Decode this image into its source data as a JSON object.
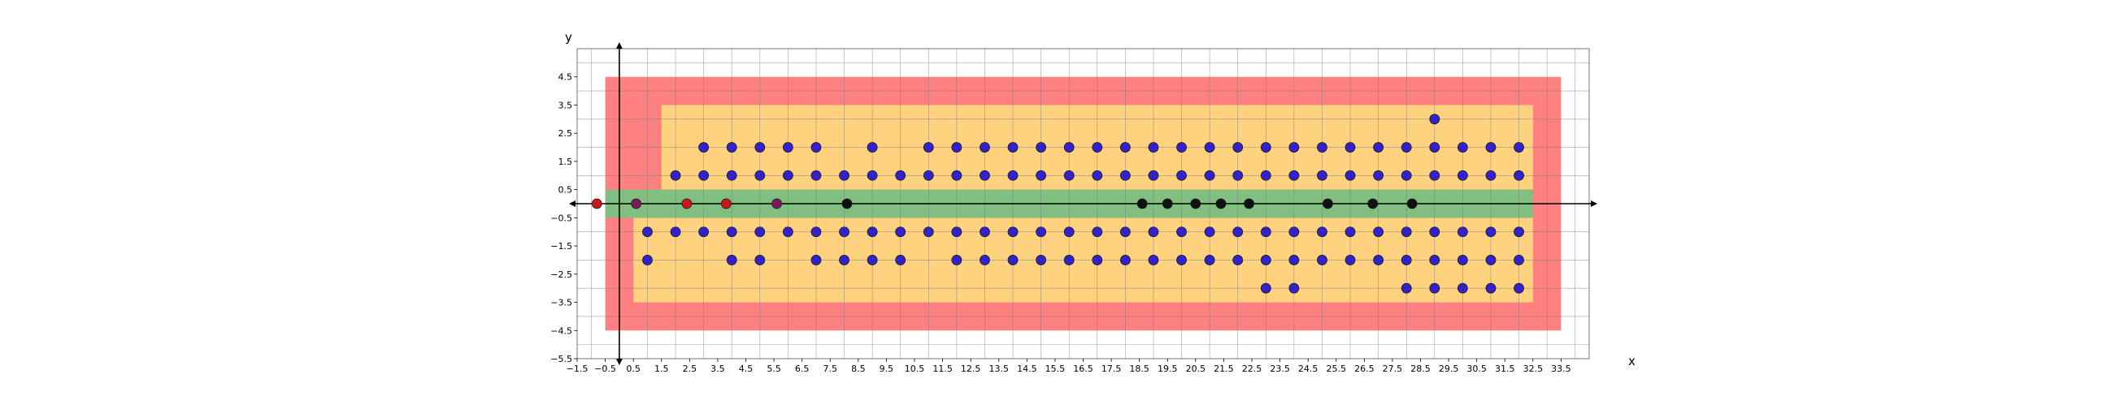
{
  "chart_data": {
    "type": "scatter",
    "xlabel": "x",
    "ylabel": "y",
    "xlim": [
      -1.5,
      34.5
    ],
    "ylim": [
      -5.5,
      5.5
    ],
    "grid": true,
    "x_ticks": [
      "−1.5",
      "−0.5",
      "0.5",
      "1.5",
      "2.5",
      "3.5",
      "4.5",
      "5.5",
      "6.5",
      "7.5",
      "8.5",
      "9.5",
      "10.5",
      "11.5",
      "12.5",
      "13.5",
      "14.5",
      "15.5",
      "16.5",
      "17.5",
      "18.5",
      "19.5",
      "20.5",
      "21.5",
      "22.5",
      "23.5",
      "24.5",
      "25.5",
      "26.5",
      "27.5",
      "28.5",
      "29.5",
      "30.5",
      "31.5",
      "32.5",
      "33.5"
    ],
    "x_tick_values": [
      -1.5,
      -0.5,
      0.5,
      1.5,
      2.5,
      3.5,
      4.5,
      5.5,
      6.5,
      7.5,
      8.5,
      9.5,
      10.5,
      11.5,
      12.5,
      13.5,
      14.5,
      15.5,
      16.5,
      17.5,
      18.5,
      19.5,
      20.5,
      21.5,
      22.5,
      23.5,
      24.5,
      25.5,
      26.5,
      27.5,
      28.5,
      29.5,
      30.5,
      31.5,
      32.5,
      33.5
    ],
    "y_ticks": [
      "4.5",
      "3.5",
      "2.5",
      "1.5",
      "0.5",
      "−0.5",
      "−1.5",
      "−2.5",
      "−3.5",
      "−4.5",
      "−5.5"
    ],
    "y_tick_values": [
      4.5,
      3.5,
      2.5,
      1.5,
      0.5,
      -0.5,
      -1.5,
      -2.5,
      -3.5,
      -4.5,
      -5.5
    ],
    "regions": [
      {
        "name": "red-zone",
        "color": "#ff8080",
        "x": [
          -0.5,
          33.5
        ],
        "y": [
          -4.5,
          4.5
        ]
      },
      {
        "name": "orange-zone-upper",
        "color": "#ffd27f",
        "x": [
          1.5,
          32.5
        ],
        "y": [
          0.5,
          3.5
        ]
      },
      {
        "name": "orange-zone-lower",
        "color": "#ffd27f",
        "x": [
          0.5,
          32.5
        ],
        "y": [
          -3.5,
          -0.5
        ]
      },
      {
        "name": "green-zone",
        "color": "#80bf80",
        "x": [
          -0.5,
          32.5
        ],
        "y": [
          -0.5,
          0.5
        ]
      }
    ],
    "series": [
      {
        "color": "#3322cc",
        "points": [
          [
            29,
            3
          ],
          [
            3,
            2
          ],
          [
            4,
            2
          ],
          [
            5,
            2
          ],
          [
            6,
            2
          ],
          [
            7,
            2
          ],
          [
            9,
            2
          ],
          [
            11,
            2
          ],
          [
            12,
            2
          ],
          [
            13,
            2
          ],
          [
            14,
            2
          ],
          [
            15,
            2
          ],
          [
            16,
            2
          ],
          [
            17,
            2
          ],
          [
            18,
            2
          ],
          [
            19,
            2
          ],
          [
            20,
            2
          ],
          [
            21,
            2
          ],
          [
            22,
            2
          ],
          [
            23,
            2
          ],
          [
            24,
            2
          ],
          [
            25,
            2
          ],
          [
            26,
            2
          ],
          [
            27,
            2
          ],
          [
            28,
            2
          ],
          [
            29,
            2
          ],
          [
            30,
            2
          ],
          [
            31,
            2
          ],
          [
            32,
            2
          ],
          [
            2,
            1
          ],
          [
            3,
            1
          ],
          [
            4,
            1
          ],
          [
            5,
            1
          ],
          [
            6,
            1
          ],
          [
            7,
            1
          ],
          [
            8,
            1
          ],
          [
            9,
            1
          ],
          [
            10,
            1
          ],
          [
            11,
            1
          ],
          [
            12,
            1
          ],
          [
            13,
            1
          ],
          [
            14,
            1
          ],
          [
            15,
            1
          ],
          [
            16,
            1
          ],
          [
            17,
            1
          ],
          [
            18,
            1
          ],
          [
            19,
            1
          ],
          [
            20,
            1
          ],
          [
            21,
            1
          ],
          [
            22,
            1
          ],
          [
            23,
            1
          ],
          [
            24,
            1
          ],
          [
            25,
            1
          ],
          [
            26,
            1
          ],
          [
            27,
            1
          ],
          [
            28,
            1
          ],
          [
            29,
            1
          ],
          [
            30,
            1
          ],
          [
            31,
            1
          ],
          [
            32,
            1
          ],
          [
            1,
            -1
          ],
          [
            2,
            -1
          ],
          [
            3,
            -1
          ],
          [
            4,
            -1
          ],
          [
            5,
            -1
          ],
          [
            6,
            -1
          ],
          [
            7,
            -1
          ],
          [
            8,
            -1
          ],
          [
            9,
            -1
          ],
          [
            10,
            -1
          ],
          [
            11,
            -1
          ],
          [
            12,
            -1
          ],
          [
            13,
            -1
          ],
          [
            14,
            -1
          ],
          [
            15,
            -1
          ],
          [
            16,
            -1
          ],
          [
            17,
            -1
          ],
          [
            18,
            -1
          ],
          [
            19,
            -1
          ],
          [
            20,
            -1
          ],
          [
            21,
            -1
          ],
          [
            22,
            -1
          ],
          [
            23,
            -1
          ],
          [
            24,
            -1
          ],
          [
            25,
            -1
          ],
          [
            26,
            -1
          ],
          [
            27,
            -1
          ],
          [
            28,
            -1
          ],
          [
            29,
            -1
          ],
          [
            30,
            -1
          ],
          [
            31,
            -1
          ],
          [
            32,
            -1
          ],
          [
            1,
            -2
          ],
          [
            4,
            -2
          ],
          [
            5,
            -2
          ],
          [
            7,
            -2
          ],
          [
            8,
            -2
          ],
          [
            9,
            -2
          ],
          [
            10,
            -2
          ],
          [
            12,
            -2
          ],
          [
            13,
            -2
          ],
          [
            14,
            -2
          ],
          [
            15,
            -2
          ],
          [
            16,
            -2
          ],
          [
            17,
            -2
          ],
          [
            18,
            -2
          ],
          [
            19,
            -2
          ],
          [
            20,
            -2
          ],
          [
            21,
            -2
          ],
          [
            22,
            -2
          ],
          [
            23,
            -2
          ],
          [
            24,
            -2
          ],
          [
            25,
            -2
          ],
          [
            26,
            -2
          ],
          [
            27,
            -2
          ],
          [
            28,
            -2
          ],
          [
            29,
            -2
          ],
          [
            30,
            -2
          ],
          [
            31,
            -2
          ],
          [
            32,
            -2
          ],
          [
            23,
            -3
          ],
          [
            24,
            -3
          ],
          [
            28,
            -3
          ],
          [
            29,
            -3
          ],
          [
            30,
            -3
          ],
          [
            31,
            -3
          ],
          [
            32,
            -3
          ]
        ]
      },
      {
        "color": "#c81818",
        "points": [
          [
            -0.8,
            0
          ],
          [
            2.4,
            0
          ],
          [
            3.8,
            0
          ]
        ]
      },
      {
        "color": "#7a1a5a",
        "points": [
          [
            0.6,
            0
          ],
          [
            5.6,
            0
          ]
        ]
      },
      {
        "color": "#111111",
        "points": [
          [
            8.1,
            0
          ],
          [
            18.6,
            0
          ],
          [
            19.5,
            0
          ],
          [
            20.5,
            0
          ],
          [
            21.4,
            0
          ],
          [
            22.4,
            0
          ],
          [
            25.2,
            0
          ],
          [
            26.8,
            0
          ],
          [
            28.2,
            0
          ]
        ]
      }
    ]
  }
}
